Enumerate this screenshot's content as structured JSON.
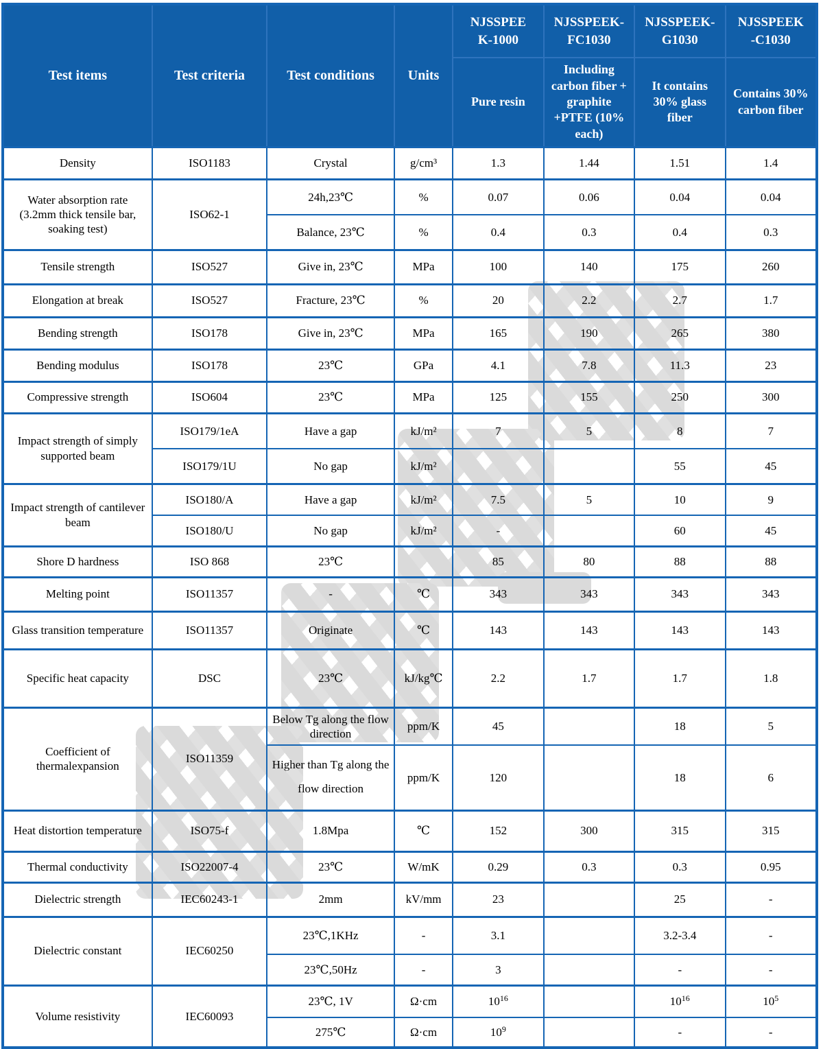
{
  "palette": {
    "header_bg": "#115fa9",
    "border_blue": "#1565b4",
    "header_text": "#ffffff",
    "body_text": "#000000",
    "watermark_gray": "#dadada"
  },
  "watermark": {
    "text": "南京首塑"
  },
  "header": {
    "test_items": "Test items",
    "test_criteria": "Test criteria",
    "test_conditions": "Test conditions",
    "units": "Units",
    "products": [
      {
        "name": "NJSSPEE\nK-1000",
        "desc": "Pure resin"
      },
      {
        "name": "NJSSPEEK-\nFC1030",
        "desc": "Including carbon fiber + graphite +PTFE (10% each)"
      },
      {
        "name": "NJSSPEEK-\nG1030",
        "desc": "It contains 30% glass fiber"
      },
      {
        "name": "NJSSPEEK\n-C1030",
        "desc": "Contains 30% carbon fiber"
      }
    ]
  },
  "rows": [
    {
      "item": "Density",
      "criteria": "ISO1183",
      "subs": [
        {
          "cond": "Crystal",
          "unit": "g/cm³",
          "vals": [
            "1.3",
            "1.44",
            "1.51",
            "1.4"
          ]
        }
      ]
    },
    {
      "item": "Water absorption rate (3.2mm thick tensile bar, soaking test)",
      "criteria": "ISO62-1",
      "subs": [
        {
          "cond": "24h,23℃",
          "unit": "%",
          "vals": [
            "0.07",
            "0.06",
            "0.04",
            "0.04"
          ]
        },
        {
          "cond": "Balance, 23℃",
          "unit": "%",
          "vals": [
            "0.4",
            "0.3",
            "0.4",
            "0.3"
          ]
        }
      ]
    },
    {
      "item": "Tensile strength",
      "criteria": "ISO527",
      "subs": [
        {
          "cond": "Give in, 23℃",
          "unit": "MPa",
          "vals": [
            "100",
            "140",
            "175",
            "260"
          ]
        }
      ]
    },
    {
      "item": "Elongation at break",
      "criteria": "ISO527",
      "subs": [
        {
          "cond": "Fracture, 23℃",
          "unit": "%",
          "vals": [
            "20",
            "2.2",
            "2.7",
            "1.7"
          ]
        }
      ]
    },
    {
      "item": "Bending strength",
      "criteria": "ISO178",
      "subs": [
        {
          "cond": "Give in, 23℃",
          "unit": "MPa",
          "vals": [
            "165",
            "190",
            "265",
            "380"
          ]
        }
      ]
    },
    {
      "item": "Bending modulus",
      "criteria": "ISO178",
      "subs": [
        {
          "cond": "23℃",
          "unit": "GPa",
          "vals": [
            "4.1",
            "7.8",
            "11.3",
            "23"
          ]
        }
      ]
    },
    {
      "item": "Compressive strength",
      "criteria": "ISO604",
      "subs": [
        {
          "cond": "23℃",
          "unit": "MPa",
          "vals": [
            "125",
            "155",
            "250",
            "300"
          ]
        }
      ]
    },
    {
      "item": "Impact strength of simply supported beam",
      "subs": [
        {
          "criteria": "ISO179/1eA",
          "cond": "Have a gap",
          "unit": "kJ/m²",
          "vals": [
            "7",
            "5",
            "8",
            "7"
          ]
        },
        {
          "criteria": "ISO179/1U",
          "cond": "No gap",
          "unit": "kJ/m²",
          "vals": [
            "",
            "",
            "55",
            "45"
          ]
        }
      ]
    },
    {
      "item": "Impact strength of cantilever beam",
      "subs": [
        {
          "criteria": "ISO180/A",
          "cond": "Have a gap",
          "unit": "kJ/m²",
          "vals": [
            "7.5",
            "5",
            "10",
            "9"
          ]
        },
        {
          "criteria": "ISO180/U",
          "cond": "No gap",
          "unit": "kJ/m²",
          "vals": [
            "-",
            "",
            "60",
            "45"
          ]
        }
      ]
    },
    {
      "item": "Shore D hardness",
      "criteria": "ISO 868",
      "subs": [
        {
          "cond": "23℃",
          "unit": "",
          "vals": [
            "85",
            "80",
            "88",
            "88"
          ]
        }
      ]
    },
    {
      "item": "Melting point",
      "criteria": "ISO11357",
      "subs": [
        {
          "cond": "-",
          "unit": "℃",
          "vals": [
            "343",
            "343",
            "343",
            "343"
          ]
        }
      ]
    },
    {
      "item": "Glass transition temperature",
      "criteria": "ISO11357",
      "subs": [
        {
          "cond": "Originate",
          "unit": "℃",
          "vals": [
            "143",
            "143",
            "143",
            "143"
          ]
        }
      ]
    },
    {
      "item": "Specific heat capacity",
      "criteria": "DSC",
      "subs": [
        {
          "cond": "23℃",
          "unit": "kJ/kg℃",
          "vals": [
            "2.2",
            "1.7",
            "1.7",
            "1.8"
          ]
        }
      ]
    },
    {
      "item": "Coefficient of thermalexpansion",
      "criteria": "ISO11359",
      "subs": [
        {
          "cond": "Below Tg along the flow direction",
          "unit": "ppm/K",
          "vals": [
            "45",
            "",
            "18",
            "5"
          ]
        },
        {
          "cond": "Higher than Tg along the flow direction",
          "unit": "ppm/K",
          "vals": [
            "120",
            "",
            "18",
            "6"
          ]
        }
      ]
    },
    {
      "item": "Heat distortion temperature",
      "criteria": "ISO75-f",
      "subs": [
        {
          "cond": "1.8Mpa",
          "unit": "℃",
          "vals": [
            "152",
            "300",
            "315",
            "315"
          ]
        }
      ]
    },
    {
      "item": "Thermal conductivity",
      "criteria": "ISO22007-4",
      "subs": [
        {
          "cond": "23℃",
          "unit": "W/mK",
          "vals": [
            "0.29",
            "0.3",
            "0.3",
            "0.95"
          ]
        }
      ]
    },
    {
      "item": "Dielectric strength",
      "criteria": "IEC60243-1",
      "subs": [
        {
          "cond": "2mm",
          "unit": "kV/mm",
          "vals": [
            "23",
            "",
            "25",
            "-"
          ]
        }
      ]
    },
    {
      "item": "Dielectric constant",
      "criteria": "IEC60250",
      "subs": [
        {
          "cond": "23℃,1KHz",
          "unit": "-",
          "vals": [
            "3.1",
            "",
            "3.2-3.4",
            "-"
          ]
        },
        {
          "cond": "23℃,50Hz",
          "unit": "-",
          "vals": [
            "3",
            "",
            "-",
            "-"
          ]
        }
      ]
    },
    {
      "item": "Volume resistivity",
      "criteria": "IEC60093",
      "subs": [
        {
          "cond": "23℃, 1V",
          "unit": "Ω·cm",
          "vals": [
            "10¹⁶",
            "",
            "10¹⁶",
            "10⁵"
          ]
        },
        {
          "cond": "275℃",
          "unit": "Ω·cm",
          "vals": [
            "10⁹",
            "",
            "-",
            "-"
          ]
        }
      ]
    }
  ]
}
